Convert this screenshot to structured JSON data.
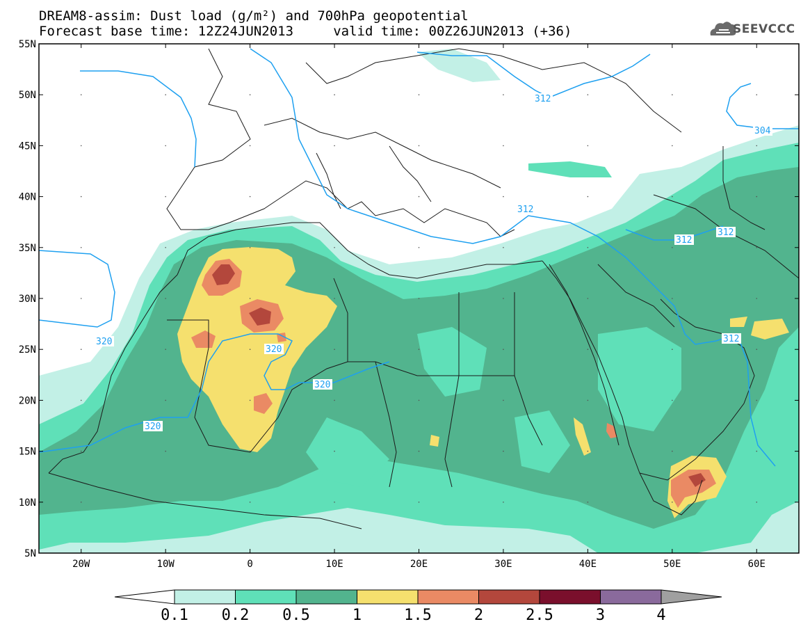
{
  "header": {
    "title_line1": "DREAM8-assim: Dust load (g/m²) and 700hPa geopotential",
    "title_line2": "Forecast base time: 12Z24JUN2013     valid time: 00Z26JUN2013 (+36)"
  },
  "logo": {
    "icon": "cloud-icon",
    "text": "SEEVCCC"
  },
  "map": {
    "lon_range": [
      -25,
      65
    ],
    "lat_range": [
      5,
      55
    ],
    "lat_labels": [
      "55N",
      "50N",
      "45N",
      "40N",
      "35N",
      "30N",
      "25N",
      "20N",
      "15N",
      "10N",
      "5N"
    ],
    "lon_labels": [
      "20W",
      "10W",
      "0",
      "10E",
      "20E",
      "30E",
      "40E",
      "50E",
      "60E"
    ],
    "contour_labels": [
      "312",
      "312",
      "312",
      "312",
      "312",
      "320",
      "320",
      "320",
      "320",
      "320",
      "312"
    ],
    "contour_label_top_right": "304"
  },
  "colorbar": {
    "ticks": [
      "0.1",
      "0.2",
      "0.5",
      "1",
      "1.5",
      "2",
      "2.5",
      "3",
      "4"
    ],
    "colors": [
      "#c2f0e6",
      "#5fe0b8",
      "#52b48e",
      "#f5e06e",
      "#ea8a64",
      "#b3473c",
      "#7a0f2c",
      "#8a6a9c",
      "#a0a0a0"
    ]
  }
}
